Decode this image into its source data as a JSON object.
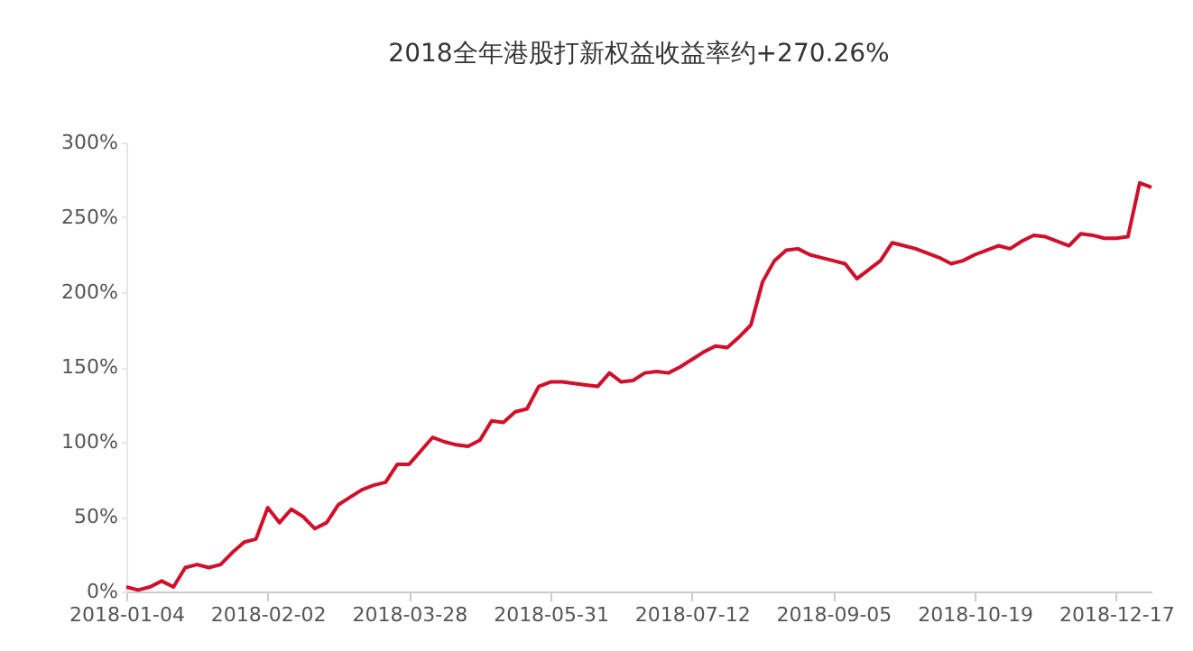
{
  "chart_data": {
    "type": "line",
    "title": "2018全年港股打新权益收益率约+270.26%",
    "categories": [
      "2018-01-04",
      null,
      null,
      null,
      null,
      null,
      null,
      null,
      null,
      null,
      null,
      null,
      "2018-02-02",
      null,
      null,
      null,
      null,
      null,
      null,
      null,
      null,
      null,
      null,
      null,
      "2018-03-28",
      null,
      null,
      null,
      null,
      null,
      null,
      null,
      null,
      null,
      null,
      null,
      "2018-05-31",
      null,
      null,
      null,
      null,
      null,
      null,
      null,
      null,
      null,
      null,
      null,
      "2018-07-12",
      null,
      null,
      null,
      null,
      null,
      null,
      null,
      null,
      null,
      null,
      null,
      "2018-09-05",
      null,
      null,
      null,
      null,
      null,
      null,
      null,
      null,
      null,
      null,
      null,
      "2018-10-19",
      null,
      null,
      null,
      null,
      null,
      null,
      null,
      null,
      null,
      null,
      null,
      "2018-12-17",
      null,
      null,
      null
    ],
    "series": [
      {
        "color": "#d0102a",
        "values": [
          3,
          1,
          3,
          7,
          3,
          16,
          18,
          16,
          18,
          26,
          33,
          35,
          56,
          46,
          55,
          50,
          42,
          46,
          58,
          63,
          68,
          71,
          73,
          85,
          85,
          94,
          103,
          100,
          98,
          97,
          101,
          114,
          113,
          120,
          122,
          137,
          140,
          140,
          139,
          138,
          137,
          146,
          140,
          141,
          146,
          147,
          146,
          150,
          155,
          160,
          164,
          163,
          170,
          178,
          207,
          221,
          228,
          229,
          225,
          223,
          221,
          219,
          209,
          215,
          221,
          233,
          231,
          229,
          226,
          223,
          219,
          221,
          225,
          228,
          231,
          229,
          234,
          238,
          237,
          234,
          231,
          239,
          238,
          236,
          236,
          237,
          273,
          270
        ]
      }
    ],
    "ylim": [
      0,
      300
    ],
    "yticks": [
      {
        "value": 0,
        "label": "0%"
      },
      {
        "value": 50,
        "label": "50%"
      },
      {
        "value": 100,
        "label": "100%"
      },
      {
        "value": 150,
        "label": "150%"
      },
      {
        "value": 200,
        "label": "200%"
      },
      {
        "value": 250,
        "label": "250%"
      },
      {
        "value": 300,
        "label": "300%"
      }
    ],
    "grid": false,
    "marker": "none",
    "line_style": "solid"
  }
}
